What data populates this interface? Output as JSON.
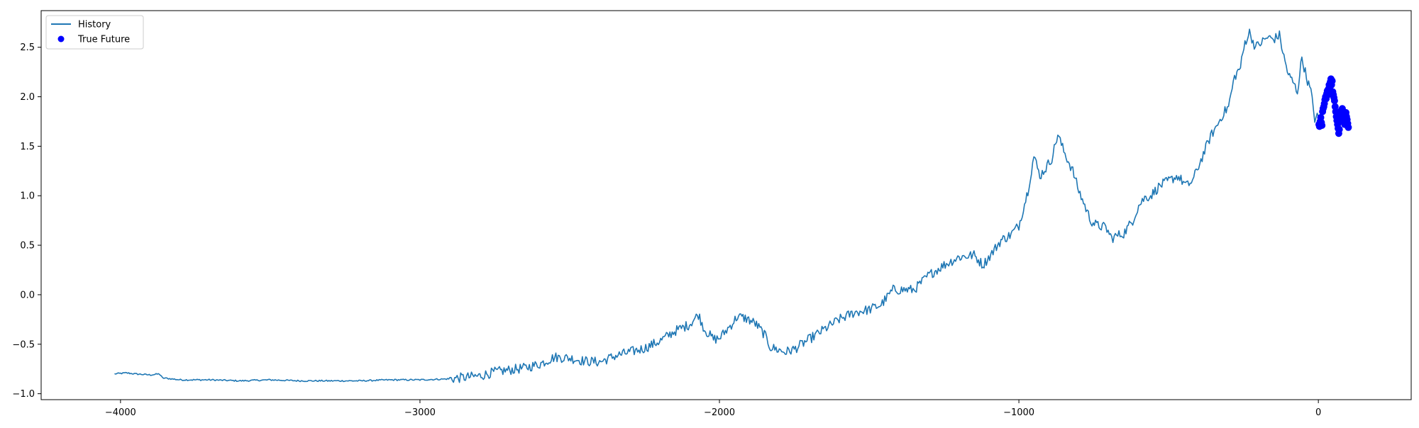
{
  "chart_data": {
    "type": "line",
    "title": "",
    "xlabel": "",
    "ylabel": "",
    "xlim": [
      -4265,
      310
    ],
    "ylim": [
      -1.06,
      2.87
    ],
    "x_ticks": [
      {
        "value": -4000,
        "label": "−4000"
      },
      {
        "value": -3000,
        "label": "−3000"
      },
      {
        "value": -2000,
        "label": "−2000"
      },
      {
        "value": -1000,
        "label": "−1000"
      },
      {
        "value": 0,
        "label": "0"
      }
    ],
    "y_ticks": [
      {
        "value": -1.0,
        "label": "−1.0"
      },
      {
        "value": -0.5,
        "label": "−0.5"
      },
      {
        "value": 0.0,
        "label": "0.0"
      },
      {
        "value": 0.5,
        "label": "0.5"
      },
      {
        "value": 1.0,
        "label": "1.0"
      },
      {
        "value": 1.5,
        "label": "1.5"
      },
      {
        "value": 2.0,
        "label": "2.0"
      },
      {
        "value": 2.5,
        "label": "2.5"
      }
    ],
    "grid": false,
    "legend": {
      "position": "top-left",
      "entries": [
        {
          "label": "History",
          "marker": "line",
          "color": "#1f77b4"
        },
        {
          "label": "True Future",
          "marker": "circle",
          "color": "#0000ff"
        }
      ]
    },
    "series": [
      {
        "name": "History",
        "type": "line",
        "color": "#1f77b4",
        "anchors": [
          [
            -4020,
            -0.8
          ],
          [
            -3980,
            -0.79
          ],
          [
            -3950,
            -0.8
          ],
          [
            -3900,
            -0.81
          ],
          [
            -3870,
            -0.8
          ],
          [
            -3860,
            -0.84
          ],
          [
            -3800,
            -0.86
          ],
          [
            -3700,
            -0.86
          ],
          [
            -3600,
            -0.87
          ],
          [
            -3500,
            -0.86
          ],
          [
            -3400,
            -0.87
          ],
          [
            -3300,
            -0.87
          ],
          [
            -3200,
            -0.87
          ],
          [
            -3100,
            -0.86
          ],
          [
            -3000,
            -0.86
          ],
          [
            -2900,
            -0.85
          ],
          [
            -2800,
            -0.82
          ],
          [
            -2750,
            -0.78
          ],
          [
            -2700,
            -0.76
          ],
          [
            -2650,
            -0.74
          ],
          [
            -2600,
            -0.7
          ],
          [
            -2550,
            -0.63
          ],
          [
            -2500,
            -0.64
          ],
          [
            -2450,
            -0.67
          ],
          [
            -2400,
            -0.68
          ],
          [
            -2350,
            -0.62
          ],
          [
            -2300,
            -0.58
          ],
          [
            -2250,
            -0.54
          ],
          [
            -2200,
            -0.47
          ],
          [
            -2150,
            -0.37
          ],
          [
            -2100,
            -0.3
          ],
          [
            -2070,
            -0.2
          ],
          [
            -2050,
            -0.35
          ],
          [
            -2020,
            -0.45
          ],
          [
            -2000,
            -0.44
          ],
          [
            -1960,
            -0.3
          ],
          [
            -1940,
            -0.22
          ],
          [
            -1910,
            -0.24
          ],
          [
            -1880,
            -0.29
          ],
          [
            -1850,
            -0.4
          ],
          [
            -1830,
            -0.53
          ],
          [
            -1800,
            -0.56
          ],
          [
            -1780,
            -0.58
          ],
          [
            -1750,
            -0.55
          ],
          [
            -1700,
            -0.45
          ],
          [
            -1650,
            -0.35
          ],
          [
            -1600,
            -0.25
          ],
          [
            -1550,
            -0.18
          ],
          [
            -1500,
            -0.15
          ],
          [
            -1460,
            -0.1
          ],
          [
            -1420,
            0.05
          ],
          [
            -1380,
            0.05
          ],
          [
            -1350,
            0.05
          ],
          [
            -1300,
            0.2
          ],
          [
            -1250,
            0.3
          ],
          [
            -1200,
            0.38
          ],
          [
            -1150,
            0.4
          ],
          [
            -1120,
            0.3
          ],
          [
            -1090,
            0.42
          ],
          [
            -1060,
            0.55
          ],
          [
            -1030,
            0.6
          ],
          [
            -1000,
            0.7
          ],
          [
            -970,
            1.05
          ],
          [
            -950,
            1.4
          ],
          [
            -930,
            1.2
          ],
          [
            -910,
            1.28
          ],
          [
            -890,
            1.38
          ],
          [
            -870,
            1.62
          ],
          [
            -850,
            1.45
          ],
          [
            -820,
            1.25
          ],
          [
            -800,
            1.05
          ],
          [
            -780,
            0.9
          ],
          [
            -760,
            0.75
          ],
          [
            -740,
            0.7
          ],
          [
            -710,
            0.68
          ],
          [
            -690,
            0.57
          ],
          [
            -670,
            0.6
          ],
          [
            -650,
            0.62
          ],
          [
            -620,
            0.75
          ],
          [
            -600,
            0.9
          ],
          [
            -580,
            0.98
          ],
          [
            -560,
            1.0
          ],
          [
            -530,
            1.1
          ],
          [
            -500,
            1.15
          ],
          [
            -470,
            1.2
          ],
          [
            -440,
            1.1
          ],
          [
            -420,
            1.15
          ],
          [
            -400,
            1.3
          ],
          [
            -380,
            1.45
          ],
          [
            -360,
            1.6
          ],
          [
            -340,
            1.7
          ],
          [
            -320,
            1.82
          ],
          [
            -300,
            1.9
          ],
          [
            -280,
            2.2
          ],
          [
            -260,
            2.3
          ],
          [
            -245,
            2.55
          ],
          [
            -230,
            2.65
          ],
          [
            -210,
            2.5
          ],
          [
            -190,
            2.55
          ],
          [
            -170,
            2.6
          ],
          [
            -150,
            2.58
          ],
          [
            -130,
            2.62
          ],
          [
            -115,
            2.4
          ],
          [
            -100,
            2.22
          ],
          [
            -85,
            2.15
          ],
          [
            -70,
            2.05
          ],
          [
            -55,
            2.4
          ],
          [
            -40,
            2.2
          ],
          [
            -25,
            2.05
          ],
          [
            -12,
            1.78
          ],
          [
            0,
            1.8
          ]
        ],
        "noise_amplitude": 0.05
      },
      {
        "name": "True Future",
        "type": "scatter",
        "color": "#0000ff",
        "points": [
          [
            2,
            1.72
          ],
          [
            4,
            1.7
          ],
          [
            6,
            1.75
          ],
          [
            8,
            1.79
          ],
          [
            10,
            1.74
          ],
          [
            12,
            1.71
          ],
          [
            14,
            1.85
          ],
          [
            16,
            1.88
          ],
          [
            18,
            1.9
          ],
          [
            20,
            1.93
          ],
          [
            22,
            1.97
          ],
          [
            24,
            2.0
          ],
          [
            26,
            1.98
          ],
          [
            28,
            2.03
          ],
          [
            30,
            2.06
          ],
          [
            32,
            2.02
          ],
          [
            34,
            2.08
          ],
          [
            36,
            2.12
          ],
          [
            38,
            2.1
          ],
          [
            40,
            2.15
          ],
          [
            42,
            2.18
          ],
          [
            44,
            2.12
          ],
          [
            46,
            2.16
          ],
          [
            48,
            2.05
          ],
          [
            50,
            2.02
          ],
          [
            52,
            1.99
          ],
          [
            54,
            1.96
          ],
          [
            56,
            1.9
          ],
          [
            58,
            1.85
          ],
          [
            60,
            1.8
          ],
          [
            62,
            1.76
          ],
          [
            64,
            1.72
          ],
          [
            66,
            1.68
          ],
          [
            68,
            1.63
          ],
          [
            70,
            1.67
          ],
          [
            72,
            1.75
          ],
          [
            74,
            1.81
          ],
          [
            76,
            1.86
          ],
          [
            78,
            1.84
          ],
          [
            80,
            1.88
          ],
          [
            82,
            1.82
          ],
          [
            84,
            1.78
          ],
          [
            86,
            1.75
          ],
          [
            88,
            1.72
          ],
          [
            90,
            1.79
          ],
          [
            92,
            1.84
          ],
          [
            94,
            1.8
          ],
          [
            96,
            1.77
          ],
          [
            98,
            1.73
          ],
          [
            100,
            1.69
          ]
        ]
      }
    ]
  }
}
